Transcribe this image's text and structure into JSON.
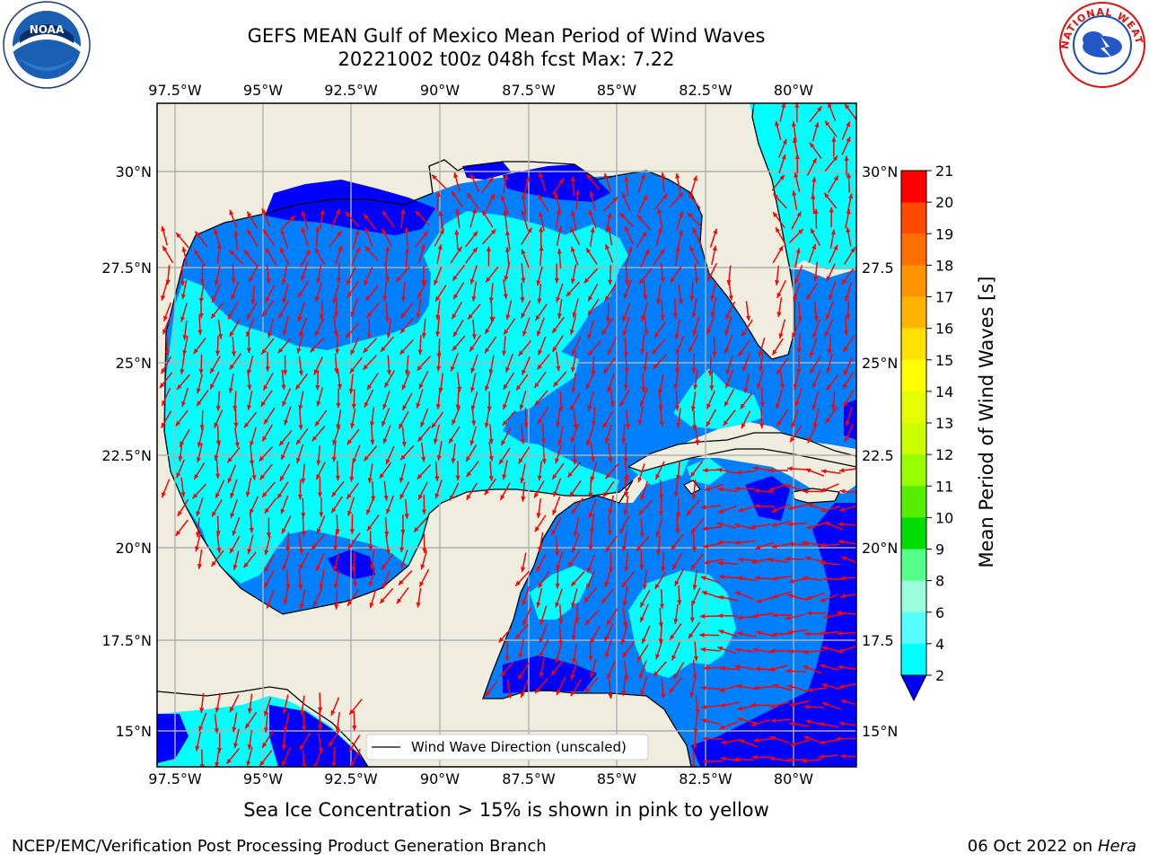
{
  "title_line1": "GEFS MEAN Gulf of Mexico Mean Period of Wind Waves",
  "title_line2": "20221002 t00z 048h fcst   Max: 7.22",
  "subtitle": "Sea Ice Concentration > 15% is shown in pink to yellow",
  "footer_left": "NCEP/EMC/Verification Post Processing Product Generation Branch",
  "footer_date": "06 Oct 2022 on ",
  "footer_host": "Hera",
  "legend_label": "Wind Wave Direction (unscaled)",
  "colorbar_label": "Mean Period of Wind Waves [s]",
  "lon_ticks": [
    "97.5°W",
    "95°W",
    "92.5°W",
    "90°W",
    "87.5°W",
    "85°W",
    "82.5°W",
    "80°W"
  ],
  "lat_ticks_left": [
    "30°N",
    "27.5°N",
    "25°N",
    "22.5°N",
    "20°N",
    "17.5°N",
    "15°N"
  ],
  "lat_ticks_right": [
    "30°N",
    "27.5",
    "25°N",
    "22.5",
    "20°N",
    "17.5",
    "15°N"
  ],
  "colorbar": {
    "ticks": [
      "21",
      "20",
      "19",
      "18",
      "17",
      "16",
      "15",
      "14",
      "13",
      "12",
      "11",
      "10",
      "9",
      "8",
      "6",
      "4",
      "2"
    ],
    "colors": [
      "#ff0000",
      "#ff2500",
      "#ff4a00",
      "#ff6f00",
      "#ff9400",
      "#ffb400",
      "#ffe100",
      "#ffff00",
      "#e6ff00",
      "#ccff00",
      "#99ff00",
      "#55ee00",
      "#00dd00",
      "#55ff88",
      "#99ffdd",
      "#55ffff",
      "#00ffff",
      "#0080ff"
    ],
    "extend_color": "#0000ff"
  },
  "map": {
    "extent": {
      "lon": [
        -98.5,
        -78.5
      ],
      "lat": [
        14,
        31.8
      ]
    },
    "land_color": "#efedde",
    "arrow_color": "#ff0000",
    "period_colors": {
      "lt2": "#0000ff",
      "2to4": "#0080ff",
      "4to6": "#00ffff"
    }
  },
  "logos": {
    "left": "NOAA",
    "right": "NATIONAL WEATHER SERVICE"
  }
}
